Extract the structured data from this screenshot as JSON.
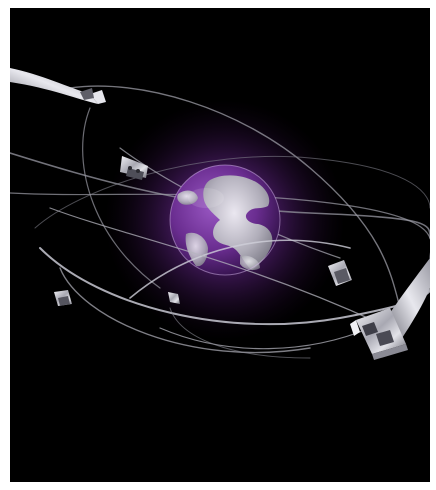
{
  "scene": {
    "subject": "metallic-globe-with-orbiting-aluminium-profiles",
    "background_color": "#000000",
    "frame_color": "#ffffff",
    "accent_glow": "#8a3fb0",
    "globe_ocean": "#6b2f8f",
    "land_color": "#c9c9cf",
    "ribbon_color": "#b9b9c2",
    "profile_color": "#d8d8de"
  }
}
